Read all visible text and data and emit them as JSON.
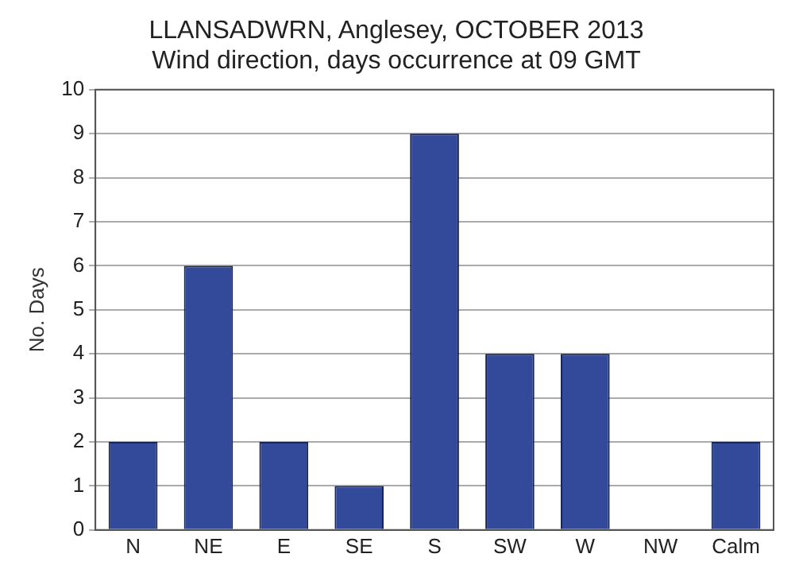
{
  "chart_data": {
    "type": "bar",
    "title": "LLANSADWRN, Anglesey, OCTOBER 2013",
    "subtitle": "Wind direction, days occurrence at 09 GMT",
    "ylabel": "No. Days",
    "categories": [
      "N",
      "NE",
      "E",
      "SE",
      "S",
      "SW",
      "W",
      "NW",
      "Calm"
    ],
    "values": [
      2,
      6,
      2,
      1,
      9,
      4,
      4,
      0,
      2
    ],
    "color": "#334a9a",
    "ylim": [
      0,
      10
    ],
    "yticks": [
      0,
      1,
      2,
      3,
      4,
      5,
      6,
      7,
      8,
      9,
      10
    ],
    "grid": "y",
    "legend": false
  }
}
